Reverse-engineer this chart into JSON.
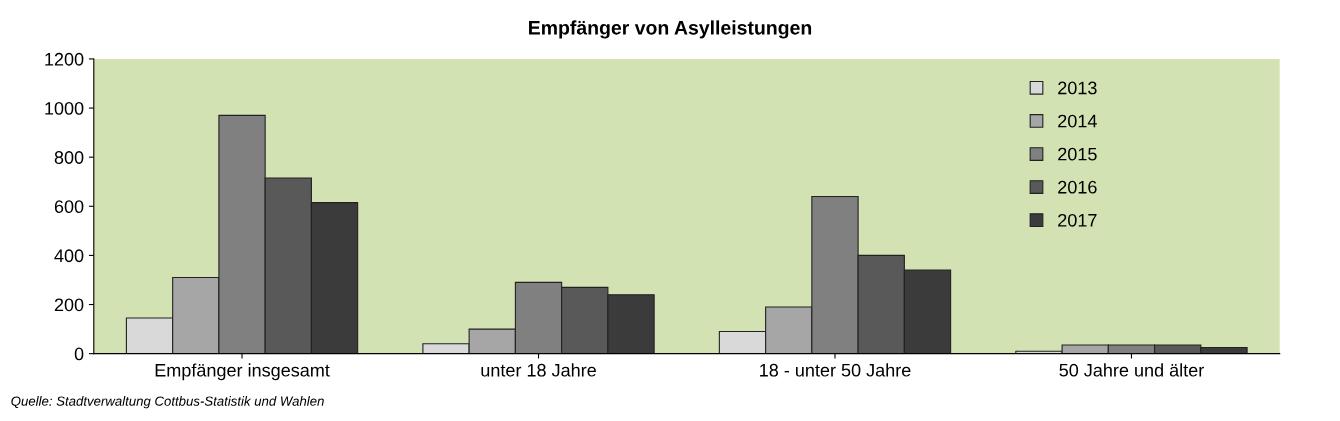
{
  "chart_data": {
    "type": "bar",
    "title": "Empfänger von Asylleistungen",
    "categories": [
      "Empfänger insgesamt",
      "unter 18 Jahre",
      "18 - unter 50 Jahre",
      "50 Jahre und älter"
    ],
    "series": [
      {
        "name": "2013",
        "color": "#d9d9d9",
        "values": [
          145,
          40,
          90,
          10
        ]
      },
      {
        "name": "2014",
        "color": "#a6a6a6",
        "values": [
          310,
          100,
          190,
          35
        ]
      },
      {
        "name": "2015",
        "color": "#808080",
        "values": [
          970,
          290,
          640,
          35
        ]
      },
      {
        "name": "2016",
        "color": "#595959",
        "values": [
          715,
          270,
          400,
          35
        ]
      },
      {
        "name": "2017",
        "color": "#3b3b3b",
        "values": [
          615,
          240,
          340,
          25
        ]
      }
    ],
    "ylim": [
      0,
      1200
    ],
    "yticks": [
      0,
      200,
      400,
      600,
      800,
      1000,
      1200
    ],
    "grid": false,
    "legend": "top right",
    "annotations": [
      "Quelle: Stadtverwaltung Cottbus-Statistik und Wahlen"
    ]
  }
}
